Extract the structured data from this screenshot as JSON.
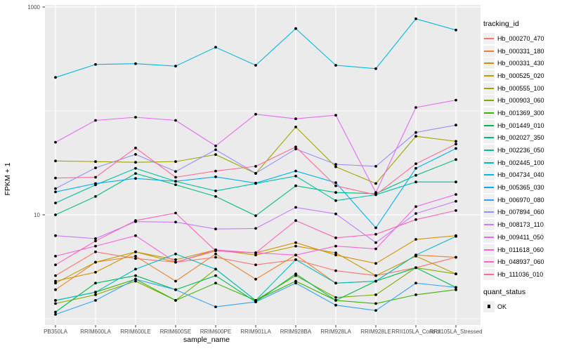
{
  "chart": {
    "y_axis_title": "FPKM + 1",
    "x_axis_title": "sample_name",
    "tracking_legend_title": "tracking_id",
    "quant_legend_title": "quant_status",
    "quant_legend_value": "OK",
    "panel_bg": "#EBEBEB",
    "grid_color": "#FFFFFF",
    "point_color": "#000000",
    "tick_text_color": "#4D4D4D"
  },
  "chart_data": {
    "type": "line",
    "title": "",
    "xlabel": "sample_name",
    "ylabel": "FPKM + 1",
    "y_scale": "log10",
    "ylim": [
      0.85,
      1100
    ],
    "y_ticks": [
      1000,
      10
    ],
    "y_gridlines_major": [
      10,
      1000
    ],
    "y_gridlines_minor": [
      1,
      100
    ],
    "grid": true,
    "legend_position": "right",
    "point_shape": "filled-circle",
    "point_color": "#000000",
    "quant_status": "OK",
    "categories": [
      "PB350LA",
      "RRIM600LA",
      "RRIM600LE",
      "RRIM600SE",
      "RRIM600PE",
      "RRIM901LA",
      "RRIM928BA",
      "RRIM928LA",
      "RRIM928LE",
      "RRII105LA_Control",
      "RRII105LA_Stressed"
    ],
    "series": [
      {
        "name": "Hb_000270_470",
        "color": "#F8766D",
        "values": [
          2.6,
          4.4,
          3.8,
          3.5,
          3.9,
          3.3,
          3.7,
          2.9,
          2.6,
          3.1,
          3.9
        ]
      },
      {
        "name": "Hb_000331_180",
        "color": "#EA8331",
        "values": [
          1.9,
          3.5,
          4.0,
          2.3,
          4.2,
          2.4,
          4.1,
          2.2,
          2.3,
          4.1,
          3.9
        ]
      },
      {
        "name": "Hb_000331_430",
        "color": "#D89000",
        "values": [
          2.3,
          2.8,
          4.4,
          3.5,
          4.5,
          4.3,
          5.4,
          4.1,
          3.4,
          5.8,
          6.3
        ]
      },
      {
        "name": "Hb_000525_020",
        "color": "#C09B00",
        "values": [
          2.2,
          3.5,
          4.4,
          3.7,
          4.6,
          4.1,
          5.0,
          4.3,
          2.6,
          4.0,
          2.7
        ]
      },
      {
        "name": "Hb_000555_100",
        "color": "#A3A500",
        "values": [
          33,
          32.5,
          32,
          32.5,
          38,
          25,
          70,
          29,
          20,
          57,
          51
        ]
      },
      {
        "name": "Hb_000903_060",
        "color": "#7CAE00",
        "values": [
          1.4,
          1.7,
          2.3,
          1.5,
          3.0,
          1.5,
          2.6,
          1.6,
          1.7,
          3.1,
          2.7
        ]
      },
      {
        "name": "Hb_001369_300",
        "color": "#39B600",
        "values": [
          1.5,
          1.8,
          2.4,
          1.5,
          2.2,
          1.5,
          2.3,
          1.5,
          1.4,
          1.7,
          1.9
        ]
      },
      {
        "name": "Hb_001449_010",
        "color": "#00BB4E",
        "values": [
          1.16,
          2.2,
          2.6,
          1.9,
          2.6,
          1.45,
          2.7,
          1.5,
          2.3,
          3.1,
          2.0
        ]
      },
      {
        "name": "Hb_002027_350",
        "color": "#00BF7D",
        "values": [
          10,
          15,
          25,
          19.5,
          15,
          9.8,
          19,
          16.4,
          16,
          24,
          34
        ]
      },
      {
        "name": "Hb_002236_050",
        "color": "#00C1A3",
        "values": [
          13,
          19.4,
          28,
          21,
          17,
          20,
          23.6,
          13.7,
          15.6,
          20.7,
          20.7
        ]
      },
      {
        "name": "Hb_002445_100",
        "color": "#00BFC4",
        "values": [
          1.5,
          1.8,
          3.0,
          4.2,
          3.0,
          1.5,
          3.7,
          2.2,
          2.3,
          4.1,
          6.2
        ]
      },
      {
        "name": "Hb_004734_040",
        "color": "#00BAE0",
        "values": [
          210,
          280,
          285,
          270,
          410,
          275,
          620,
          275,
          255,
          770,
          600
        ]
      },
      {
        "name": "Hb_005365_030",
        "color": "#00B0F6",
        "values": [
          16.6,
          20,
          22.4,
          21,
          23.2,
          20.2,
          26.4,
          20.4,
          7.5,
          28,
          43.5
        ]
      },
      {
        "name": "Hb_006970_080",
        "color": "#35A2FF",
        "values": [
          1.1,
          1.5,
          2.4,
          1.9,
          1.3,
          1.45,
          2.2,
          1.35,
          1.2,
          2.2,
          2.0
        ]
      },
      {
        "name": "Hb_007894_060",
        "color": "#9590FF",
        "values": [
          17.9,
          28.3,
          38.2,
          26.1,
          42.3,
          25.1,
          43,
          30.6,
          29.3,
          62,
          73
        ]
      },
      {
        "name": "Hb_008173_110",
        "color": "#C77CFF",
        "values": [
          6.3,
          5.9,
          8.6,
          8.5,
          7.3,
          7.4,
          11.8,
          10.2,
          5.4,
          10.3,
          13.5
        ]
      },
      {
        "name": "Hb_009411_050",
        "color": "#E76BF3",
        "values": [
          50,
          81,
          87,
          81,
          46,
          93,
          84,
          91,
          16.4,
          108,
          127
        ]
      },
      {
        "name": "Hb_011618_060",
        "color": "#FA62DB",
        "values": [
          4.0,
          5.0,
          6.3,
          3.5,
          4.6,
          4.3,
          4.1,
          5.0,
          4.7,
          12,
          15.7
        ]
      },
      {
        "name": "Hb_048937_060",
        "color": "#FF62BC",
        "values": [
          3.3,
          5.6,
          8.8,
          10.4,
          4.5,
          4.3,
          8.8,
          6.0,
          6.5,
          9.0,
          11.0
        ]
      },
      {
        "name": "Hb_111036_010",
        "color": "#FF6A98",
        "values": [
          22.6,
          23,
          44,
          23,
          26.4,
          29.3,
          45,
          19,
          15.6,
          31,
          48
        ]
      }
    ]
  }
}
